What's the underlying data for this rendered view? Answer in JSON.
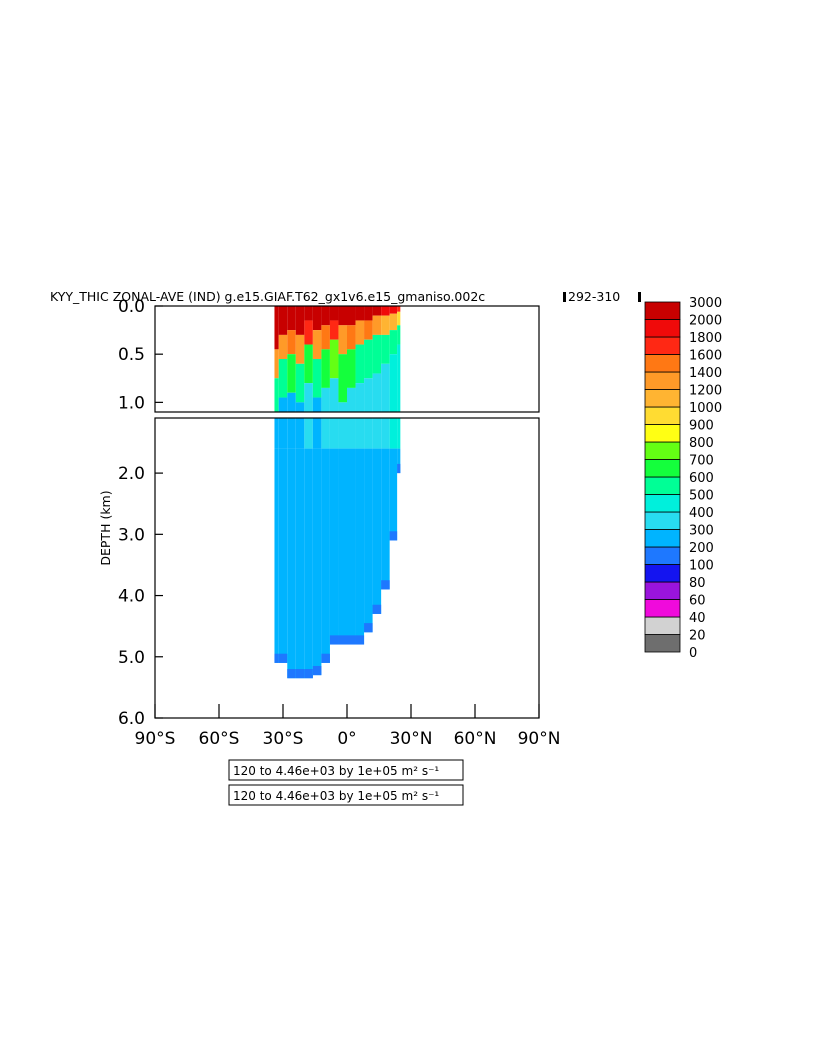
{
  "chart_data": {
    "type": "heatmap",
    "title": "KYY_THIC ZONAL-AVE (IND) g.e15.GIAF.T62_gx1v6.e15_gmaniso.002c",
    "years": "292-310",
    "ylabel": "DEPTH (km)",
    "xlim": [
      -90,
      90
    ],
    "upper_ylim": [
      0.0,
      1.1
    ],
    "lower_ylim": [
      1.1,
      6.0
    ],
    "x_ticks": [
      {
        "value": -90,
        "label": "90°S"
      },
      {
        "value": -60,
        "label": "60°S"
      },
      {
        "value": -30,
        "label": "30°S"
      },
      {
        "value": 0,
        "label": "0°"
      },
      {
        "value": 30,
        "label": "30°N"
      },
      {
        "value": 60,
        "label": "60°N"
      },
      {
        "value": 90,
        "label": "90°N"
      }
    ],
    "upper_y_ticks": [
      {
        "value": 0.0,
        "label": "0.0"
      },
      {
        "value": 0.5,
        "label": "0.5"
      },
      {
        "value": 1.0,
        "label": "1.0"
      }
    ],
    "lower_y_ticks": [
      {
        "value": 2.0,
        "label": "2.0"
      },
      {
        "value": 3.0,
        "label": "3.0"
      },
      {
        "value": 4.0,
        "label": "4.0"
      },
      {
        "value": 5.0,
        "label": "5.0"
      },
      {
        "value": 6.0,
        "label": "6.0"
      }
    ],
    "contour_info": [
      "120 to 4.46e+03 by 1e+05 m² s⁻¹",
      "120 to 4.46e+03 by 1e+05 m² s⁻¹"
    ],
    "colorbar": {
      "levels": [
        "0",
        "20",
        "40",
        "60",
        "80",
        "100",
        "200",
        "300",
        "400",
        "500",
        "600",
        "700",
        "800",
        "900",
        "1000",
        "1200",
        "1400",
        "1600",
        "1800",
        "2000",
        "3000"
      ],
      "colors": [
        "#6e6e6e",
        "#d2d2d2",
        "#f00adc",
        "#9a14dc",
        "#1414f0",
        "#1e78ff",
        "#00b4ff",
        "#28dcf0",
        "#00f0dc",
        "#00ff96",
        "#14ff3c",
        "#64ff14",
        "#ffff14",
        "#ffdc32",
        "#ffb432",
        "#ff9a28",
        "#ff7814",
        "#ff2814",
        "#f00a0a",
        "#c80000"
      ]
    },
    "field": {
      "lat_range": [
        -34,
        25
      ],
      "columns": [
        {
          "lat": -34,
          "bottom": 5.1,
          "surf": [
            [
              0.45,
              2000
            ],
            [
              0.75,
              1200
            ],
            [
              1.1,
              500
            ]
          ],
          "deep": 200
        },
        {
          "lat": -30,
          "bottom": 5.1,
          "surf": [
            [
              0.3,
              2000
            ],
            [
              0.55,
              1200
            ],
            [
              0.95,
              500
            ]
          ],
          "deep": 200
        },
        {
          "lat": -26,
          "bottom": 5.35,
          "surf": [
            [
              0.25,
              2000
            ],
            [
              0.5,
              1400
            ],
            [
              0.9,
              600
            ]
          ],
          "deep": 200
        },
        {
          "lat": -22,
          "bottom": 5.35,
          "surf": [
            [
              0.3,
              2000
            ],
            [
              0.6,
              1200
            ],
            [
              1.0,
              500
            ]
          ],
          "deep": 200
        },
        {
          "lat": -18,
          "bottom": 5.35,
          "surf": [
            [
              0.15,
              3000
            ],
            [
              0.4,
              1600
            ],
            [
              0.8,
              600
            ]
          ],
          "deep": 300
        },
        {
          "lat": -14,
          "bottom": 5.3,
          "surf": [
            [
              0.25,
              2000
            ],
            [
              0.55,
              1200
            ],
            [
              0.95,
              500
            ]
          ],
          "deep": 200
        },
        {
          "lat": -10,
          "bottom": 5.1,
          "surf": [
            [
              0.2,
              2000
            ],
            [
              0.45,
              1400
            ],
            [
              0.85,
              600
            ]
          ],
          "deep": 300
        },
        {
          "lat": -6,
          "bottom": 4.8,
          "surf": [
            [
              0.15,
              3000
            ],
            [
              0.35,
              1600
            ],
            [
              0.75,
              700
            ]
          ],
          "deep": 300
        },
        {
          "lat": -2,
          "bottom": 4.8,
          "surf": [
            [
              0.2,
              2000
            ],
            [
              0.5,
              1200
            ],
            [
              1.0,
              600
            ]
          ],
          "deep": 300
        },
        {
          "lat": 2,
          "bottom": 4.8,
          "surf": [
            [
              0.2,
              2000
            ],
            [
              0.45,
              1400
            ],
            [
              0.85,
              600
            ]
          ],
          "deep": 300
        },
        {
          "lat": 6,
          "bottom": 4.8,
          "surf": [
            [
              0.15,
              2000
            ],
            [
              0.4,
              1200
            ],
            [
              0.8,
              500
            ]
          ],
          "deep": 300
        },
        {
          "lat": 10,
          "bottom": 4.6,
          "surf": [
            [
              0.15,
              2000
            ],
            [
              0.35,
              1400
            ],
            [
              0.75,
              500
            ]
          ],
          "deep": 300
        },
        {
          "lat": 14,
          "bottom": 4.3,
          "surf": [
            [
              0.1,
              2000
            ],
            [
              0.3,
              1200
            ],
            [
              0.7,
              500
            ]
          ],
          "deep": 300
        },
        {
          "lat": 18,
          "bottom": 3.9,
          "surf": [
            [
              0.1,
              1800
            ],
            [
              0.3,
              1000
            ],
            [
              0.6,
              500
            ]
          ],
          "deep": 300
        },
        {
          "lat": 22,
          "bottom": 3.1,
          "surf": [
            [
              0.08,
              1800
            ],
            [
              0.25,
              1000
            ],
            [
              0.5,
              500
            ]
          ],
          "deep": 400
        },
        {
          "lat": 25,
          "bottom": 2.0,
          "surf": [
            [
              0.06,
              1600
            ],
            [
              0.2,
              900
            ],
            [
              0.4,
              500
            ]
          ],
          "deep": 400
        }
      ]
    }
  }
}
